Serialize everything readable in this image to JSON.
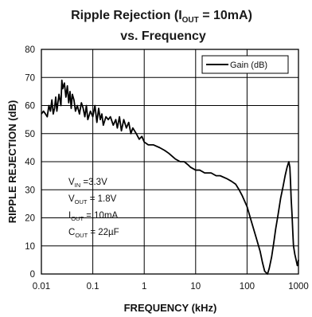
{
  "chart_data": {
    "type": "line",
    "title": {
      "prefix": "Ripple Rejection (I",
      "sub": "OUT",
      "suffix": " = 10mA)",
      "line2": "vs. Frequency"
    },
    "xlabel": "FREQUENCY (kHz)",
    "ylabel": "RIPPLE REJECTION (dB)",
    "xscale": "log",
    "xlim": [
      0.01,
      1000
    ],
    "ylim": [
      0,
      80
    ],
    "x_ticks": [
      0.01,
      0.1,
      1,
      10,
      100,
      1000
    ],
    "x_tick_labels": [
      "0.01",
      "0.1",
      "1",
      "10",
      "100",
      "1000"
    ],
    "y_ticks": [
      0,
      10,
      20,
      30,
      40,
      50,
      60,
      70,
      80
    ],
    "y_tick_labels": [
      "0",
      "10",
      "20",
      "30",
      "40",
      "50",
      "60",
      "70",
      "80"
    ],
    "grid": true,
    "legend_position": "top-right",
    "series": [
      {
        "name": "Gain (dB)",
        "color": "#000000",
        "x": [
          0.01,
          0.011,
          0.012,
          0.013,
          0.014,
          0.015,
          0.016,
          0.017,
          0.018,
          0.019,
          0.02,
          0.022,
          0.024,
          0.025,
          0.026,
          0.028,
          0.03,
          0.032,
          0.034,
          0.036,
          0.038,
          0.04,
          0.043,
          0.046,
          0.05,
          0.055,
          0.06,
          0.065,
          0.07,
          0.075,
          0.08,
          0.09,
          0.1,
          0.11,
          0.12,
          0.13,
          0.14,
          0.15,
          0.16,
          0.18,
          0.2,
          0.22,
          0.25,
          0.28,
          0.3,
          0.33,
          0.36,
          0.4,
          0.45,
          0.5,
          0.55,
          0.6,
          0.7,
          0.8,
          0.9,
          1,
          1.2,
          1.5,
          2,
          2.5,
          3,
          4,
          5,
          6,
          7,
          8,
          10,
          12,
          15,
          20,
          25,
          30,
          40,
          50,
          60,
          70,
          80,
          100,
          120,
          150,
          180,
          200,
          220,
          250,
          270,
          300,
          330,
          360,
          400,
          450,
          500,
          550,
          600,
          650,
          680,
          700,
          720,
          750,
          780,
          800,
          850,
          900,
          950,
          1000
        ],
        "y": [
          57,
          58,
          57,
          56,
          60,
          58,
          62,
          57,
          59,
          63,
          58,
          64,
          60,
          69,
          66,
          68,
          63,
          67,
          61,
          65,
          59,
          64,
          62,
          58,
          60,
          57,
          61,
          59,
          56,
          60,
          55,
          58,
          56,
          60,
          54,
          59,
          55,
          57,
          53,
          56,
          55,
          56,
          53,
          55,
          52,
          56,
          51,
          55,
          52,
          54,
          50,
          52,
          50,
          48,
          49,
          47,
          46,
          46,
          45,
          44,
          43,
          41,
          40,
          40,
          39,
          38,
          37,
          37,
          36,
          36,
          35,
          35,
          34,
          33,
          32,
          30,
          28,
          24,
          19,
          13,
          8,
          4,
          1,
          0,
          2,
          6,
          11,
          16,
          21,
          27,
          31,
          35,
          38,
          40,
          38,
          33,
          27,
          21,
          14,
          10,
          7,
          5,
          3,
          5
        ]
      }
    ],
    "annotations": [
      {
        "prefix": "V",
        "sub": "IN",
        "suffix": " =3.3V"
      },
      {
        "prefix": "V",
        "sub": "OUT",
        "suffix": " = 1.8V"
      },
      {
        "prefix": "I",
        "sub": "OUT",
        "suffix": " = 10mA"
      },
      {
        "prefix": "C",
        "sub": "OUT",
        "suffix": " = 22µF"
      }
    ]
  }
}
